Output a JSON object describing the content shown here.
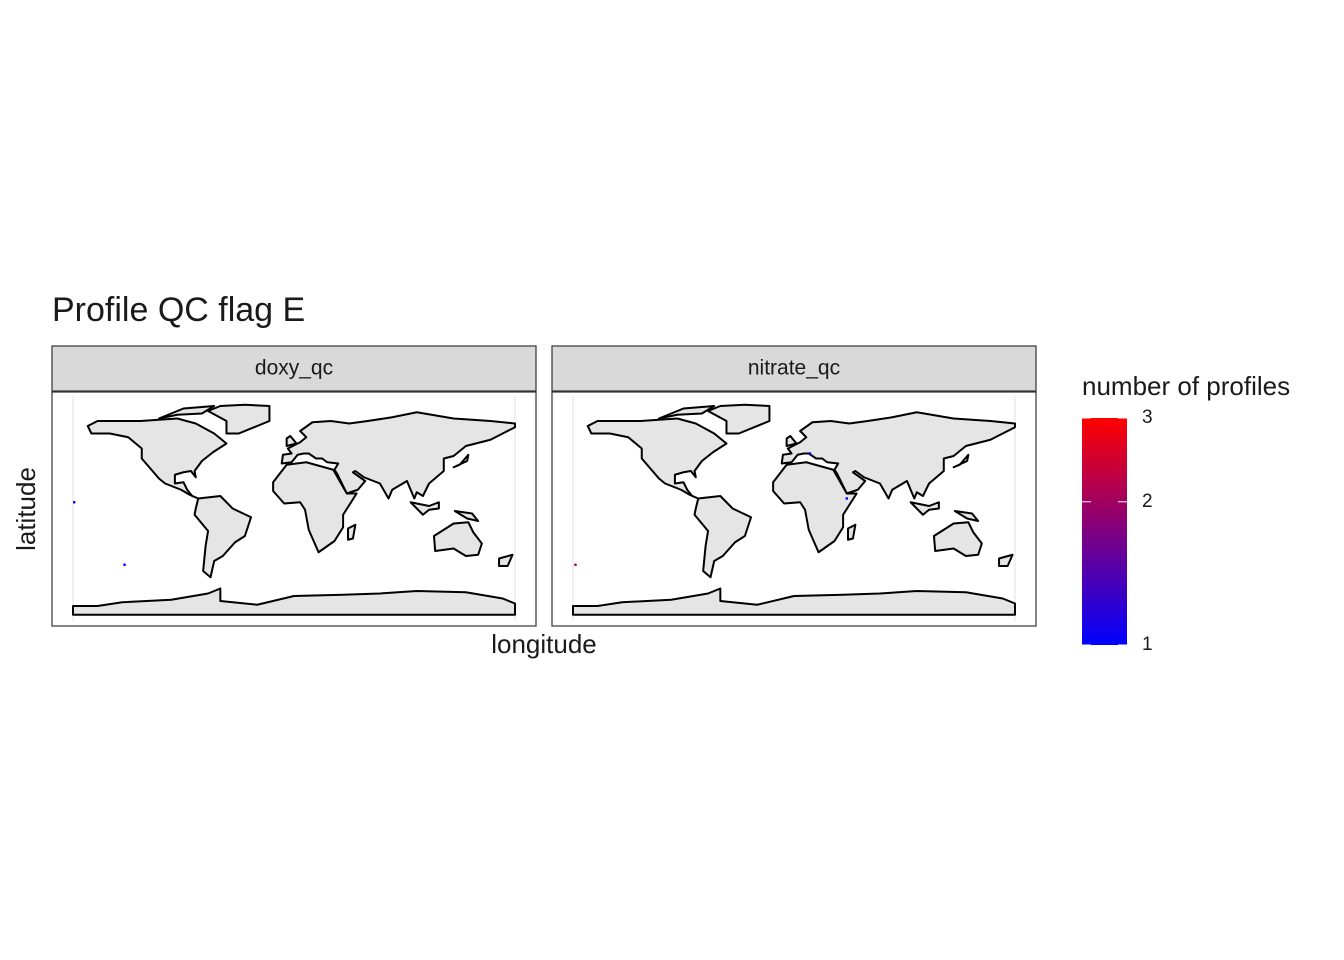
{
  "chart_data": {
    "type": "map",
    "title": "Profile QC flag E",
    "x_label": "longitude",
    "y_label": "latitude",
    "xlim": [
      -180,
      180
    ],
    "ylim": [
      -90,
      90
    ],
    "facets": [
      {
        "label": "doxy_qc",
        "tiles": [
          {
            "lon": -179,
            "lat": 5,
            "value": 1
          },
          {
            "lon": -138,
            "lat": -45,
            "value": 1
          }
        ]
      },
      {
        "label": "nitrate_qc",
        "tiles": [
          {
            "lon": -178,
            "lat": -45,
            "value": 2
          },
          {
            "lon": 13,
            "lat": 44,
            "value": 1
          },
          {
            "lon": 43,
            "lat": 8,
            "value": 1
          }
        ]
      }
    ],
    "legend": {
      "title": "number of profiles",
      "low": "#0000ff",
      "high": "#ff0000",
      "log": true,
      "lim": [
        1,
        3
      ],
      "ticks": [
        1,
        2,
        3
      ]
    }
  }
}
